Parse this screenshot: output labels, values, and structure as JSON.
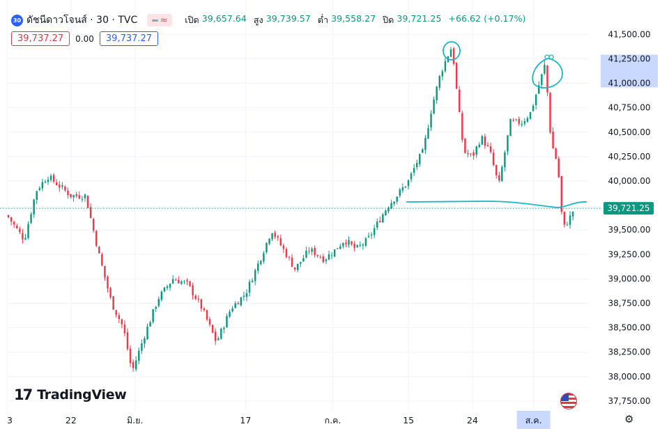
{
  "header": {
    "symbol_badge": "30",
    "symbol_name": "ดัชนีดาวโจนส์ · 30 · TVC",
    "indicator_glyph": "≈",
    "ohlc": {
      "open_label": "เปิด",
      "open": "39,657.64",
      "high_label": "สูง",
      "high": "39,739.57",
      "low_label": "ต่ำ",
      "low": "39,558.27",
      "close_label": "ปิด",
      "close": "39,721.25",
      "change": "+66.62 (+0.17%)"
    },
    "sell_price": "39,737.27",
    "spread": "0.00",
    "buy_price": "39,737.27"
  },
  "branding": {
    "mark": "17",
    "name": "TradingView"
  },
  "icons": {
    "settings": "gear-icon",
    "flag": "us-flag-icon"
  },
  "colors": {
    "up": "#089981",
    "down": "#f23645",
    "last_price": "#089981",
    "annotation": "#19b5c4",
    "highlight": "#c9d8ff",
    "grid": "#f0f3fa"
  },
  "chart_data": {
    "type": "candlestick",
    "title": "",
    "ylim": [
      37650,
      41780
    ],
    "y_ticks": [
      "37,750.00",
      "38,000.00",
      "38,250.00",
      "38,500.00",
      "38,750.00",
      "39,000.00",
      "39,250.00",
      "39,500.00",
      "40,000.00",
      "40,250.00",
      "40,500.00",
      "40,750.00",
      "41,000.00",
      "41,250.00",
      "41,500.00"
    ],
    "y_tick_values": [
      37750,
      38000,
      38250,
      38500,
      38750,
      39000,
      39250,
      39500,
      40000,
      40250,
      40500,
      40750,
      41000,
      41250,
      41500
    ],
    "x_labels": [
      "3",
      "22",
      "มิ.ย.",
      "17",
      "ก.ค.",
      "15",
      "24",
      "ส.ค."
    ],
    "x_label_positions": [
      0.0,
      0.11,
      0.22,
      0.41,
      0.56,
      0.69,
      0.8,
      0.905
    ],
    "highlighted_x_label": "ส.ค.",
    "last_price": 39721.25,
    "last_price_label": "39,721.25",
    "highlighted_y_range": [
      41000,
      41250
    ],
    "series": [
      {
        "waypoints": [
          [
            0.0,
            39650
          ],
          [
            0.03,
            39400
          ],
          [
            0.05,
            39900
          ],
          [
            0.07,
            40050
          ],
          [
            0.09,
            39950
          ],
          [
            0.11,
            39850
          ],
          [
            0.135,
            39850
          ],
          [
            0.16,
            39200
          ],
          [
            0.18,
            38750
          ],
          [
            0.2,
            38500
          ],
          [
            0.215,
            38050
          ],
          [
            0.235,
            38400
          ],
          [
            0.26,
            38800
          ],
          [
            0.285,
            39000
          ],
          [
            0.31,
            38950
          ],
          [
            0.335,
            38700
          ],
          [
            0.36,
            38350
          ],
          [
            0.385,
            38700
          ],
          [
            0.41,
            38850
          ],
          [
            0.435,
            39200
          ],
          [
            0.455,
            39500
          ],
          [
            0.475,
            39300
          ],
          [
            0.495,
            39100
          ],
          [
            0.52,
            39300
          ],
          [
            0.545,
            39200
          ],
          [
            0.565,
            39300
          ],
          [
            0.58,
            39400
          ],
          [
            0.6,
            39300
          ],
          [
            0.62,
            39400
          ],
          [
            0.64,
            39600
          ],
          [
            0.655,
            39750
          ],
          [
            0.67,
            39850
          ],
          [
            0.69,
            40000
          ],
          [
            0.705,
            40200
          ],
          [
            0.715,
            40300
          ],
          [
            0.73,
            40750
          ],
          [
            0.745,
            41100
          ],
          [
            0.755,
            41250
          ],
          [
            0.765,
            41380
          ],
          [
            0.775,
            40800
          ],
          [
            0.785,
            40300
          ],
          [
            0.8,
            40250
          ],
          [
            0.815,
            40450
          ],
          [
            0.83,
            40300
          ],
          [
            0.845,
            39950
          ],
          [
            0.865,
            40600
          ],
          [
            0.885,
            40600
          ],
          [
            0.9,
            40700
          ],
          [
            0.915,
            41000
          ],
          [
            0.925,
            41200
          ],
          [
            0.935,
            40400
          ],
          [
            0.945,
            40200
          ],
          [
            0.95,
            39950
          ],
          [
            0.955,
            39500
          ],
          [
            0.965,
            39600
          ],
          [
            0.975,
            39720
          ]
        ],
        "num_candles": 200
      }
    ]
  }
}
